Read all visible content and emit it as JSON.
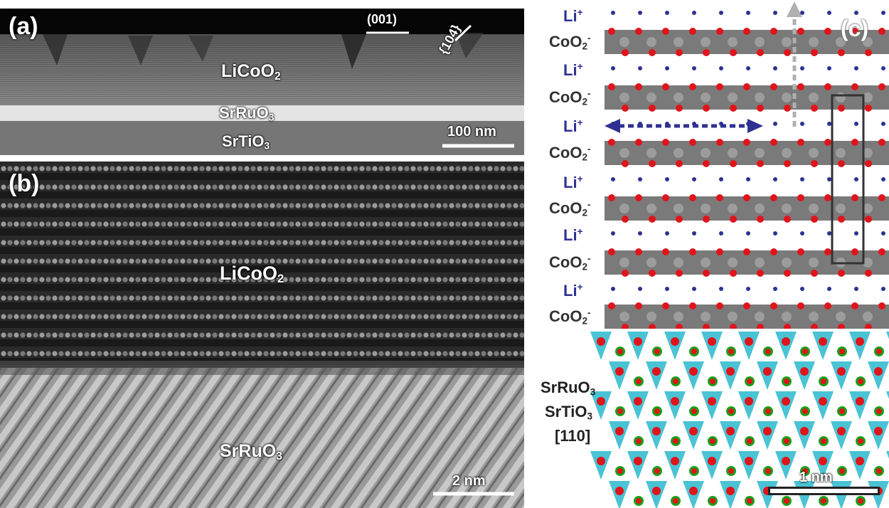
{
  "panel_a": {
    "label": "(a)",
    "film": "LiCoO",
    "film_sub": "2",
    "electrode": "SrRuO",
    "electrode_sub": "3",
    "substrate": "SrTiO",
    "substrate_sub": "3",
    "facet_001": "(001)",
    "facet_104": "{104}",
    "scale_bar": "100 nm"
  },
  "panel_b": {
    "label": "(b)",
    "film": "LiCoO",
    "film_sub": "2",
    "electrode": "SrRuO",
    "electrode_sub": "3",
    "scale_bar": "2 nm"
  },
  "panel_c": {
    "label": "(c)",
    "layers": [
      {
        "ion": "Li",
        "ion_charge": "+",
        "slab": "CoO",
        "slab_sub": "2",
        "slab_charge": "-"
      },
      {
        "ion": "Li",
        "ion_charge": "+",
        "slab": "CoO",
        "slab_sub": "2",
        "slab_charge": "-"
      },
      {
        "ion": "Li",
        "ion_charge": "+",
        "slab": "CoO",
        "slab_sub": "2",
        "slab_charge": "-"
      },
      {
        "ion": "Li",
        "ion_charge": "+",
        "slab": "CoO",
        "slab_sub": "2",
        "slab_charge": "-"
      },
      {
        "ion": "Li",
        "ion_charge": "+",
        "slab": "CoO",
        "slab_sub": "2",
        "slab_charge": "-"
      },
      {
        "ion": "Li",
        "ion_charge": "+",
        "slab": "CoO",
        "slab_sub": "2",
        "slab_charge": "-"
      }
    ],
    "substrate_1": "SrRuO",
    "substrate_1_sub": "3",
    "substrate_2": "SrTiO",
    "substrate_2_sub": "3",
    "zone_axis": "[110]",
    "scale_bar": "1 nm",
    "colors": {
      "li": "#2e3192",
      "oxygen": "#e0141b",
      "cobalt_slab": "#7a7a7a",
      "perovskite": "#2ab8cc",
      "sr": "#1aa01a"
    }
  }
}
